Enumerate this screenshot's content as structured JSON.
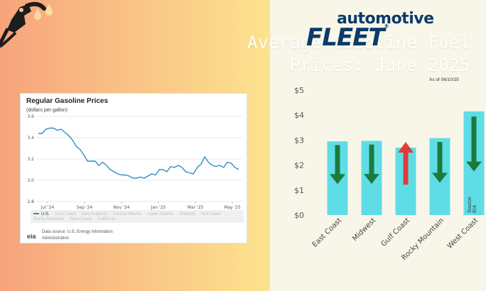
{
  "headline": {
    "line1": "Average Gasoline Fuel",
    "line2": "Prices: June 2025"
  },
  "eia_chart": {
    "title": "Regular Gasoline Prices",
    "subtitle": "(dollars per gallon)",
    "chart_data": {
      "type": "line",
      "title": "Regular Gasoline Prices",
      "ylabel": "(dollars per gallon)",
      "ylim": [
        2.8,
        3.6
      ],
      "yticks": [
        "3.6",
        "3.4",
        "3.2",
        "3.0",
        "2.8"
      ],
      "xtick_labels": [
        "Jul '24",
        "Sep '24",
        "Nov '24",
        "Jan '25",
        "Mar '25",
        "May '25"
      ],
      "grid": "horizontal",
      "series": [
        {
          "name": "U.S.",
          "color": "#2f8fc4",
          "values": [
            3.44,
            3.44,
            3.48,
            3.49,
            3.49,
            3.47,
            3.48,
            3.45,
            3.42,
            3.38,
            3.32,
            3.29,
            3.24,
            3.18,
            3.18,
            3.18,
            3.14,
            3.17,
            3.14,
            3.1,
            3.08,
            3.06,
            3.05,
            3.05,
            3.04,
            3.02,
            3.02,
            3.03,
            3.02,
            3.04,
            3.06,
            3.05,
            3.1,
            3.1,
            3.08,
            3.13,
            3.12,
            3.14,
            3.12,
            3.08,
            3.07,
            3.06,
            3.12,
            3.15,
            3.22,
            3.17,
            3.14,
            3.13,
            3.14,
            3.12,
            3.17,
            3.16,
            3.12,
            3.1
          ]
        }
      ]
    },
    "legend": [
      "U.S.",
      "East Coast",
      "New England",
      "Central Atlantic",
      "Lower Atlantic",
      "Midwest",
      "Gulf Coast",
      "Rocky Mountain",
      "West Coast",
      "California"
    ],
    "logo_text": "eia",
    "source_text": "Data source: U.S. Energy Information Administration"
  },
  "brand": {
    "top": "automotive",
    "bottom": "FLEET",
    "reg": "®"
  },
  "as_of": "As of 06/10/25",
  "source_label": "Source: EIA",
  "chart_data": {
    "type": "bar",
    "categories": [
      "East Coast",
      "Midwest",
      "Gulf Coast",
      "Rocky Mountain",
      "West Coast"
    ],
    "values": [
      2.95,
      2.97,
      2.7,
      3.08,
      4.15
    ],
    "trend": [
      "down",
      "down",
      "up",
      "down",
      "down"
    ],
    "ylim": [
      0,
      5
    ],
    "yticks": [
      "$0",
      "$1",
      "$2",
      "$3",
      "$4",
      "$5"
    ],
    "bar_color": "#5fdde6",
    "arrow_down_color": "#1c7a3a",
    "arrow_up_color": "#e23a3a",
    "grid": "none"
  },
  "colors": {
    "brand_navy": "#0d3a69",
    "line_blue": "#2f8fc4"
  }
}
